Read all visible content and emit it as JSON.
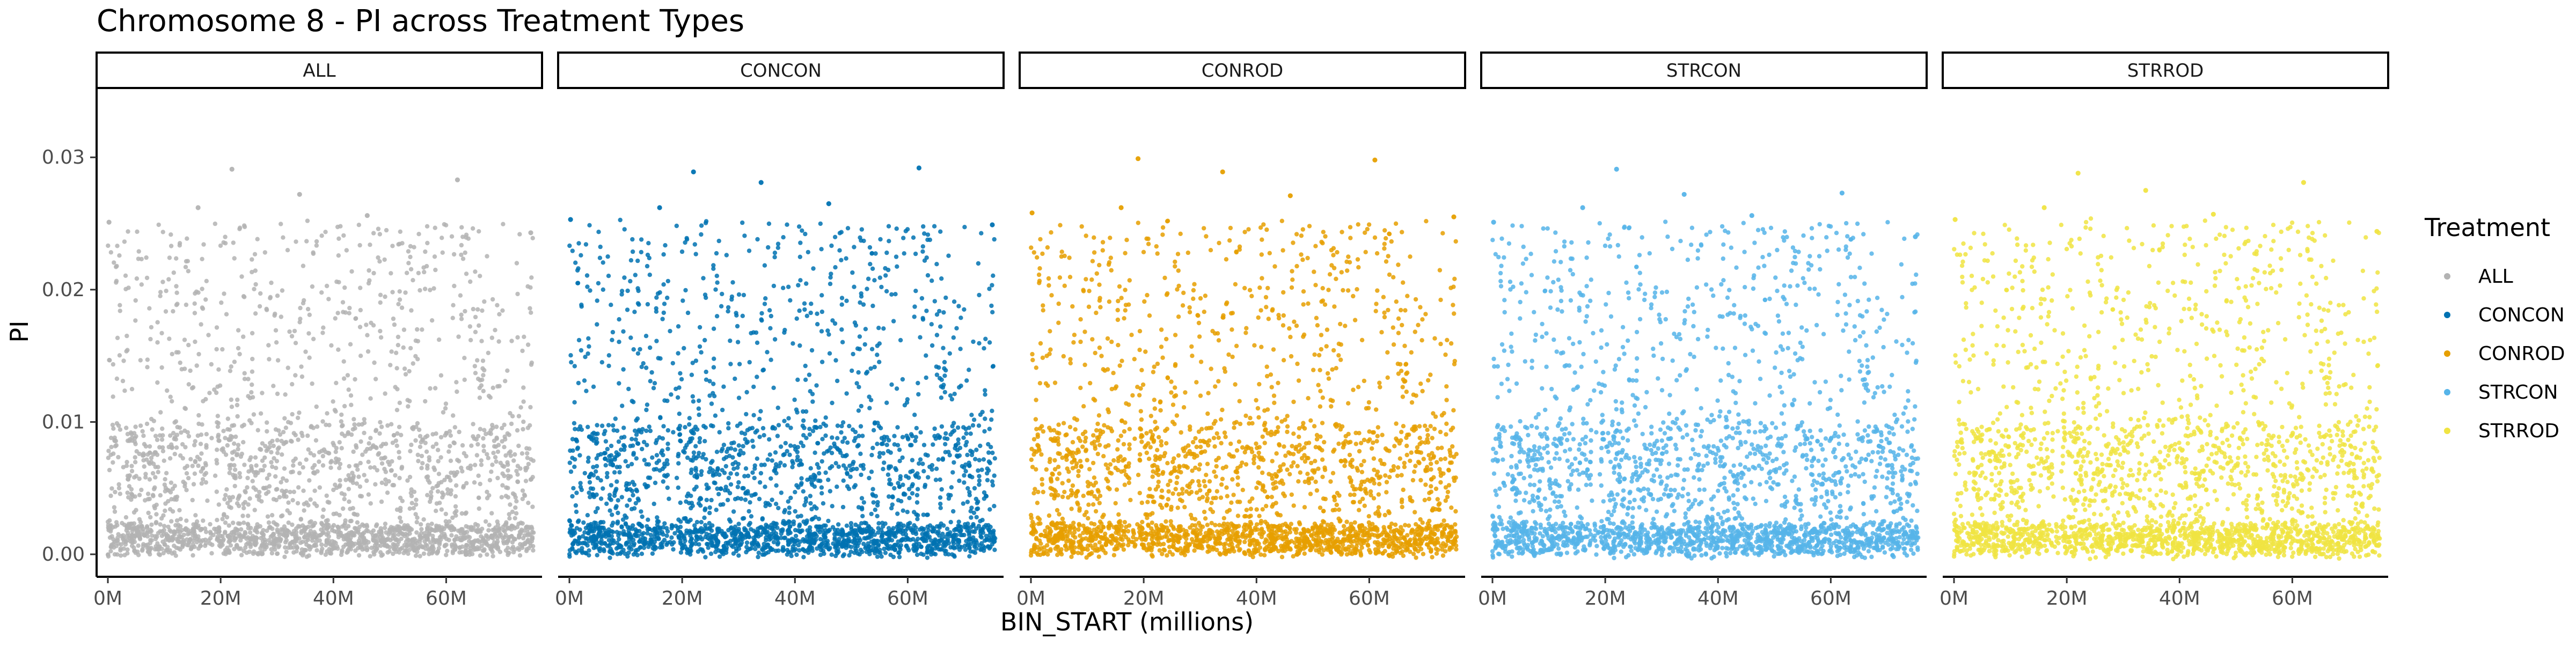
{
  "chart_data": {
    "type": "scatter",
    "title": "Chromosome 8 - PI across Treatment Types",
    "xlabel": "BIN_START (millions)",
    "ylabel": "PI",
    "xlim": [
      -2,
      77
    ],
    "ylim": [
      -0.0017,
      0.0352
    ],
    "x_ticks": [
      {
        "value": 0,
        "label": "0M"
      },
      {
        "value": 20,
        "label": "20M"
      },
      {
        "value": 40,
        "label": "40M"
      },
      {
        "value": 60,
        "label": "60M"
      }
    ],
    "y_ticks": [
      {
        "value": 0.0,
        "label": "0.00"
      },
      {
        "value": 0.01,
        "label": "0.01"
      },
      {
        "value": 0.02,
        "label": "0.02"
      },
      {
        "value": 0.03,
        "label": "0.03"
      }
    ],
    "grid": false,
    "facet_strips": true,
    "legend": {
      "title": "Treatment",
      "placement": "right",
      "entries": [
        {
          "name": "ALL",
          "color": "#B3B3B3"
        },
        {
          "name": "CONCON",
          "color": "#0072B2"
        },
        {
          "name": "CONROD",
          "color": "#E69F00"
        },
        {
          "name": "STRCON",
          "color": "#56B4E9"
        },
        {
          "name": "STRROD",
          "color": "#F0E442"
        }
      ]
    },
    "series": [
      {
        "name": "ALL",
        "color": "#B3B3B3",
        "highlight_points": [
          [
            0.2,
            0.0251
          ],
          [
            22,
            0.0291
          ],
          [
            34,
            0.0272
          ],
          [
            62,
            0.0283
          ],
          [
            16,
            0.0262
          ],
          [
            46,
            0.0256
          ],
          [
            75,
            0.0243
          ]
        ]
      },
      {
        "name": "CONCON",
        "color": "#0072B2",
        "highlight_points": [
          [
            0.2,
            0.0253
          ],
          [
            22,
            0.0289
          ],
          [
            34,
            0.0281
          ],
          [
            62,
            0.0292
          ],
          [
            16,
            0.0262
          ],
          [
            46,
            0.0265
          ],
          [
            75,
            0.0249
          ]
        ]
      },
      {
        "name": "CONROD",
        "color": "#E69F00",
        "highlight_points": [
          [
            0.2,
            0.0258
          ],
          [
            19,
            0.0299
          ],
          [
            34,
            0.0289
          ],
          [
            61,
            0.0298
          ],
          [
            16,
            0.0262
          ],
          [
            46,
            0.0271
          ],
          [
            75,
            0.0255
          ]
        ]
      },
      {
        "name": "STRCON",
        "color": "#56B4E9",
        "highlight_points": [
          [
            0.2,
            0.0251
          ],
          [
            22,
            0.0291
          ],
          [
            34,
            0.0272
          ],
          [
            62,
            0.0273
          ],
          [
            16,
            0.0262
          ],
          [
            46,
            0.0256
          ],
          [
            75,
            0.024
          ]
        ]
      },
      {
        "name": "STRROD",
        "color": "#F0E442",
        "highlight_points": [
          [
            0.2,
            0.0253
          ],
          [
            22,
            0.0288
          ],
          [
            34,
            0.0275
          ],
          [
            62,
            0.0281
          ],
          [
            16,
            0.0262
          ],
          [
            46,
            0.0257
          ],
          [
            75,
            0.0244
          ]
        ]
      }
    ]
  }
}
